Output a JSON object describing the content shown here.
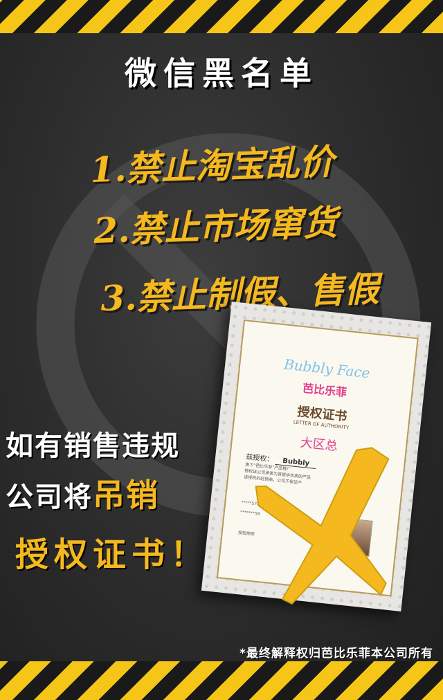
{
  "title": "微信黑名单",
  "rules": [
    "1.禁止淘宝乱价",
    "2.禁止市场窜货",
    "3.禁止制假、售假"
  ],
  "warning": {
    "line1": "如有销售违规",
    "line2_prefix": "公司将",
    "line2_highlight": "吊销",
    "line3": "授权证书！"
  },
  "certificate": {
    "brand_en": "Bubbly Face",
    "brand_cn": "芭比乐菲",
    "heading": "授权证书",
    "heading_en": "LETTER OF AUTHORITY",
    "area": "大区总",
    "grant_label": "兹授权：",
    "grant_name": "Bubbly",
    "line_a": "旗下“芭比乐菲”产品推广",
    "line_b": "授权该公司承诺为其提供优质的产品",
    "line_c": "该授权的经销商，公司不保证产",
    "id_text": "*****5748",
    "id_text2": "*******58",
    "sign_label": "授权期限"
  },
  "footer": "*最终解释权归芭比乐菲本公司所有",
  "colors": {
    "accent": "#f5b81f",
    "background": "#2b2b2b",
    "stripe_dark": "#1a1a1a"
  }
}
